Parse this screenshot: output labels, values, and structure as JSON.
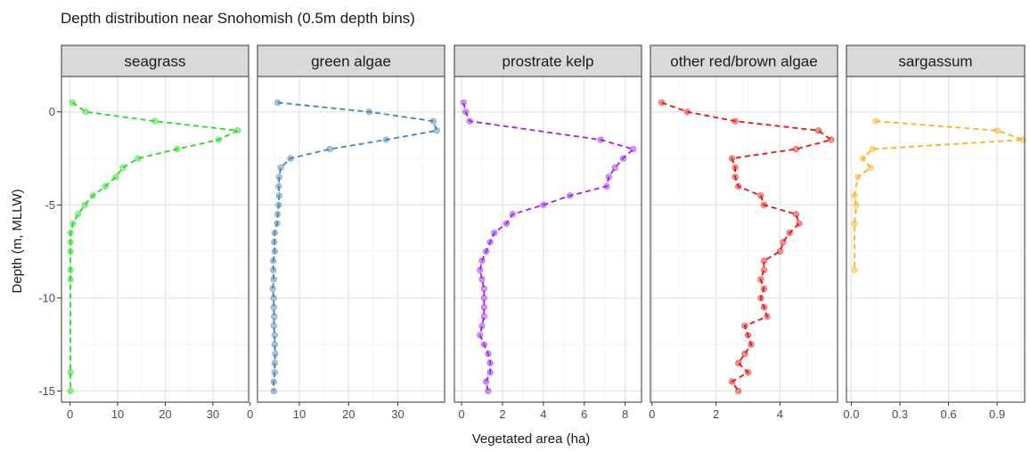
{
  "chart_data": {
    "type": "line",
    "title": "Depth distribution near Snohomish (0.5m depth bins)",
    "xlabel": "Vegetated area (ha)",
    "ylabel": "Depth (m, MLLW)",
    "ylim": [
      -15.6,
      1.9
    ],
    "y_ticks": [
      0,
      -5,
      -10,
      -15
    ],
    "grid": true,
    "legend": "none",
    "facet_strips": "top",
    "panels": [
      {
        "name": "seagrass",
        "color": "#22dd22",
        "xlim": [
          -1.8,
          37.5
        ],
        "x_ticks": [
          0,
          10,
          20,
          30
        ],
        "depth": [
          0.5,
          0,
          -0.5,
          -1,
          -1.5,
          -2,
          -2.5,
          -3,
          -3.5,
          -4,
          -4.5,
          -5,
          -5.5,
          -6,
          -6.5,
          -7,
          -7.5,
          -8.5,
          -9,
          -14,
          -15
        ],
        "area": [
          0.5,
          3.3,
          17.8,
          35.2,
          31.2,
          22.5,
          14.3,
          11.1,
          9.6,
          7.4,
          4.8,
          3.1,
          1.7,
          0.6,
          0.1,
          0.1,
          0.1,
          0.1,
          0.1,
          0.1,
          0.1
        ]
      },
      {
        "name": "green algae",
        "color": "#4682b4",
        "xlim": [
          1.5,
          39.5
        ],
        "x_ticks": [
          0,
          10,
          20,
          30
        ],
        "depth": [
          0.5,
          0,
          -0.5,
          -1,
          -1.5,
          -2,
          -2.5,
          -3,
          -3.5,
          -4,
          -4.5,
          -5,
          -5.5,
          -6,
          -6.5,
          -7,
          -7.5,
          -8,
          -8.5,
          -9,
          -9.5,
          -10,
          -10.5,
          -11,
          -11.5,
          -12,
          -12.5,
          -13,
          -13.5,
          -14,
          -14.5,
          -15
        ],
        "area": [
          5.6,
          24.2,
          37.2,
          37.9,
          27.6,
          16.2,
          8.2,
          6.2,
          5.9,
          5.8,
          5.9,
          5.8,
          5.6,
          5.5,
          5.0,
          4.9,
          5.0,
          4.7,
          4.7,
          4.8,
          4.6,
          4.8,
          4.8,
          4.9,
          4.8,
          5.0,
          5.0,
          5.1,
          5.0,
          5.0,
          4.8,
          4.8
        ]
      },
      {
        "name": "prostrate kelp",
        "color": "#a020f0",
        "xlim": [
          -0.35,
          8.8
        ],
        "x_ticks": [
          0,
          2,
          4,
          6,
          8
        ],
        "depth": [
          0.5,
          0,
          -0.5,
          -1.5,
          -2,
          -2.5,
          -3,
          -3.5,
          -4,
          -4.5,
          -5,
          -5.5,
          -6,
          -6.5,
          -7,
          -7.5,
          -8,
          -8.5,
          -9,
          -9.5,
          -10,
          -10.5,
          -11,
          -11.5,
          -12,
          -12.5,
          -13,
          -13.5,
          -14,
          -14.5,
          -15
        ],
        "area": [
          0.1,
          0.2,
          0.4,
          6.8,
          8.4,
          7.9,
          7.5,
          7.2,
          7.1,
          5.3,
          4.0,
          2.5,
          2.2,
          1.6,
          1.4,
          1.2,
          1.0,
          0.9,
          1.0,
          1.1,
          1.1,
          1.1,
          1.1,
          1.0,
          0.9,
          1.1,
          1.3,
          1.4,
          1.4,
          1.2,
          1.3
        ]
      },
      {
        "name": "other red/brown algae",
        "color": "#ee1111",
        "xlim": [
          -0.05,
          5.8
        ],
        "x_ticks": [
          0,
          2,
          4
        ],
        "depth": [
          0.5,
          0,
          -0.5,
          -1,
          -1.5,
          -2,
          -2.5,
          -3,
          -3.5,
          -4,
          -4.5,
          -5,
          -5.5,
          -6,
          -6.5,
          -7,
          -7.5,
          -8,
          -8.5,
          -9,
          -9.5,
          -10,
          -10.5,
          -11,
          -11.5,
          -12,
          -12.5,
          -13,
          -13.5,
          -14,
          -14.5,
          -15
        ],
        "area": [
          0.3,
          1.1,
          2.6,
          5.2,
          5.6,
          4.5,
          2.5,
          2.6,
          2.6,
          2.7,
          3.4,
          3.5,
          4.5,
          4.6,
          4.3,
          4.1,
          4.0,
          3.5,
          3.5,
          3.4,
          3.5,
          3.4,
          3.5,
          3.6,
          2.9,
          3.0,
          3.1,
          2.9,
          2.7,
          3.0,
          2.5,
          2.7
        ]
      },
      {
        "name": "sargassum",
        "color": "#ffb01c",
        "xlim": [
          -0.03,
          1.07
        ],
        "x_ticks": [
          0.0,
          0.3,
          0.6,
          0.9
        ],
        "x_tick_labels": [
          "0.0",
          "0.3",
          "0.6",
          "0.9"
        ],
        "depth": [
          -0.5,
          -1,
          -1.5,
          -2,
          -2.5,
          -3,
          -3.5,
          -4.5,
          -5,
          -6,
          -8.5
        ],
        "area": [
          0.15,
          0.9,
          1.06,
          0.13,
          0.07,
          0.12,
          0.04,
          0.02,
          0.03,
          0.02,
          0.02
        ]
      }
    ]
  }
}
